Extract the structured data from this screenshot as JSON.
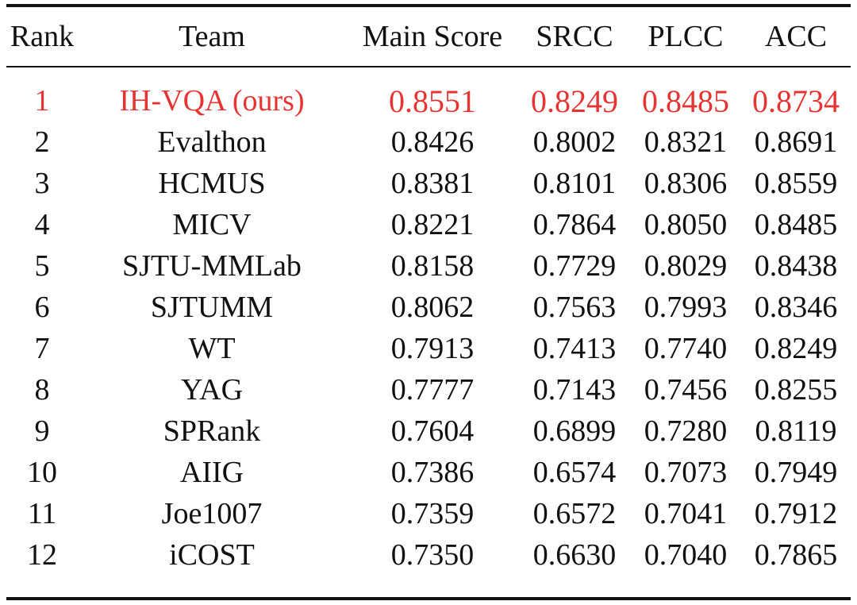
{
  "table": {
    "headers": {
      "rank": "Rank",
      "team": "Team",
      "main_score": "Main Score",
      "srcc": "SRCC",
      "plcc": "PLCC",
      "acc": "ACC"
    },
    "highlight_color": "#e63434",
    "rows": [
      {
        "rank": "1",
        "team": "IH-VQA (ours)",
        "main": "0.8551",
        "srcc": "0.8249",
        "plcc": "0.8485",
        "acc": "0.8734"
      },
      {
        "rank": "2",
        "team": "Evalthon",
        "main": "0.8426",
        "srcc": "0.8002",
        "plcc": "0.8321",
        "acc": "0.8691"
      },
      {
        "rank": "3",
        "team": "HCMUS",
        "main": "0.8381",
        "srcc": "0.8101",
        "plcc": "0.8306",
        "acc": "0.8559"
      },
      {
        "rank": "4",
        "team": "MICV",
        "main": "0.8221",
        "srcc": "0.7864",
        "plcc": "0.8050",
        "acc": "0.8485"
      },
      {
        "rank": "5",
        "team": "SJTU-MMLab",
        "main": "0.8158",
        "srcc": "0.7729",
        "plcc": "0.8029",
        "acc": "0.8438"
      },
      {
        "rank": "6",
        "team": "SJTUMM",
        "main": "0.8062",
        "srcc": "0.7563",
        "plcc": "0.7993",
        "acc": "0.8346"
      },
      {
        "rank": "7",
        "team": "WT",
        "main": "0.7913",
        "srcc": "0.7413",
        "plcc": "0.7740",
        "acc": "0.8249"
      },
      {
        "rank": "8",
        "team": "YAG",
        "main": "0.7777",
        "srcc": "0.7143",
        "plcc": "0.7456",
        "acc": "0.8255"
      },
      {
        "rank": "9",
        "team": "SPRank",
        "main": "0.7604",
        "srcc": "0.6899",
        "plcc": "0.7280",
        "acc": "0.8119"
      },
      {
        "rank": "10",
        "team": "AIIG",
        "main": "0.7386",
        "srcc": "0.6574",
        "plcc": "0.7073",
        "acc": "0.7949"
      },
      {
        "rank": "11",
        "team": "Joe1007",
        "main": "0.7359",
        "srcc": "0.6572",
        "plcc": "0.7041",
        "acc": "0.7912"
      },
      {
        "rank": "12",
        "team": "iCOST",
        "main": "0.7350",
        "srcc": "0.6630",
        "plcc": "0.7040",
        "acc": "0.7865"
      }
    ]
  }
}
